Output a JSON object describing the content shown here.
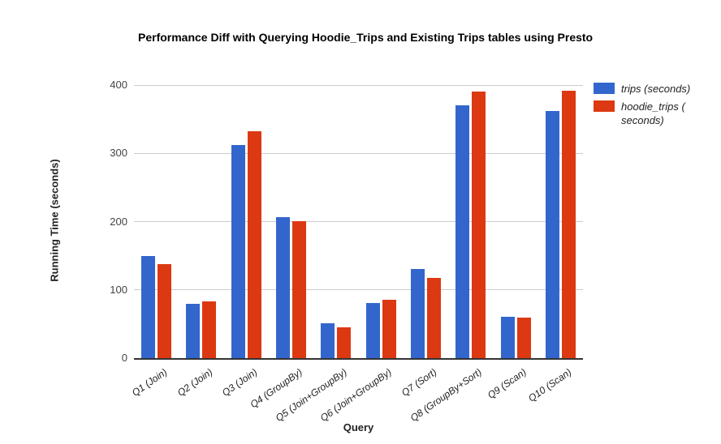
{
  "chart_data": {
    "type": "bar",
    "title": "Performance Diff with Querying Hoodie_Trips and Existing Trips tables using Presto",
    "xlabel": "Query",
    "ylabel": "Running Time (seconds)",
    "ylim": [
      0,
      400
    ],
    "yticks": [
      0,
      100,
      200,
      300,
      400
    ],
    "grid": true,
    "legend_position": "top-right",
    "categories": [
      "Q1 (Join)",
      "Q2 (Join)",
      "Q3 (Join)",
      "Q4 (GroupBy)",
      "Q5 (Join+GroupBy)",
      "Q6 (Join+GroupBy)",
      "Q7 (Sort)",
      "Q8 (GroupBy+Sort)",
      "Q9 (Scan)",
      "Q10 (Scan)"
    ],
    "series": [
      {
        "name": "trips (seconds)",
        "color": "#3366cc",
        "values": [
          150,
          80,
          312,
          207,
          51,
          81,
          131,
          370,
          61,
          362
        ]
      },
      {
        "name": "hoodie_trips ( seconds)",
        "color": "#dc3912",
        "values": [
          138,
          83,
          332,
          201,
          45,
          85,
          117,
          390,
          59,
          392
        ]
      }
    ],
    "colors": {
      "trips": "#3366cc",
      "hoodie_trips": "#dc3912",
      "gridline": "#cccccc",
      "axis_line": "#333333"
    }
  }
}
